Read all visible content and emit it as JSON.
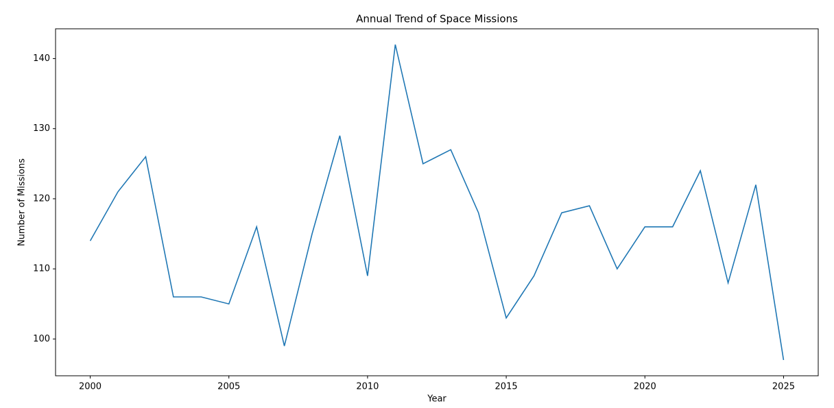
{
  "chart_data": {
    "type": "line",
    "title": "Annual Trend of Space Missions",
    "x_label": "Year",
    "y_label": "Number of Missions",
    "x": [
      2000,
      2001,
      2002,
      2003,
      2004,
      2005,
      2006,
      2007,
      2008,
      2009,
      2010,
      2011,
      2012,
      2013,
      2014,
      2015,
      2016,
      2017,
      2018,
      2019,
      2020,
      2021,
      2022,
      2023,
      2024,
      2025
    ],
    "series": [
      {
        "name": "Missions",
        "color": "#1f77b4",
        "values": [
          114,
          121,
          126,
          106,
          106,
          105,
          116,
          99,
          115,
          129,
          109,
          142,
          125,
          127,
          118,
          103,
          109,
          118,
          119,
          110,
          116,
          116,
          124,
          108,
          122,
          97
        ]
      }
    ],
    "xlim": [
      1998.75,
      2026.25
    ],
    "xticks": [
      2000,
      2005,
      2010,
      2015,
      2020,
      2025
    ],
    "ylim": [
      94.75,
      144.25
    ],
    "yticks": [
      100,
      110,
      120,
      130,
      140
    ],
    "grid": false,
    "legend": false
  }
}
